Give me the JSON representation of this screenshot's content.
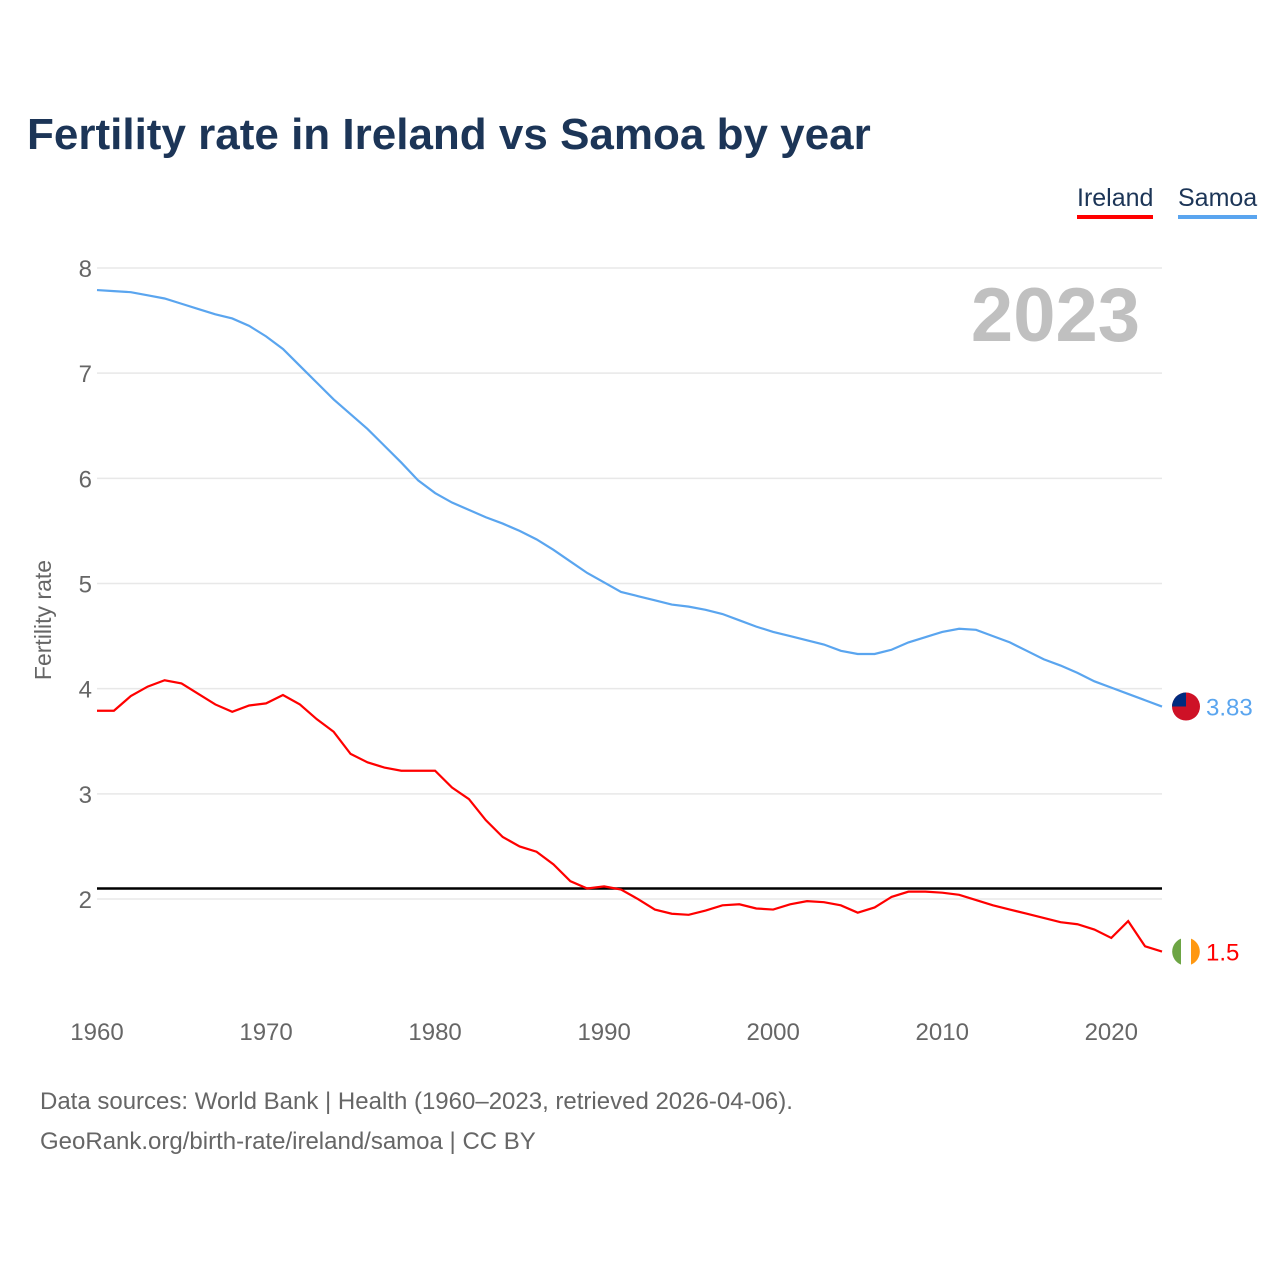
{
  "title": "Fertility rate in Ireland vs Samoa by year",
  "year_label": "2023",
  "footer": {
    "line1": "Data sources: World Bank | Health (1960–2023, retrieved 2026-04-06).",
    "line2": "GeoRank.org/birth-rate/ireland/samoa | CC BY"
  },
  "chart_data": {
    "type": "line",
    "title": "Fertility rate in Ireland vs Samoa by year",
    "xlabel": "",
    "ylabel": "Fertility rate",
    "xlim": [
      1960,
      2023
    ],
    "ylim": [
      1,
      8
    ],
    "xticks": [
      "1960",
      "1970",
      "1980",
      "1990",
      "2000",
      "2010",
      "2020"
    ],
    "yticks": [
      "2",
      "3",
      "4",
      "5",
      "6",
      "7",
      "8"
    ],
    "reference_line": 2.1,
    "legend": [
      "Ireland",
      "Samoa"
    ],
    "legend_position": "top-right",
    "x": [
      1960,
      1961,
      1962,
      1963,
      1964,
      1965,
      1966,
      1967,
      1968,
      1969,
      1970,
      1971,
      1972,
      1973,
      1974,
      1975,
      1976,
      1977,
      1978,
      1979,
      1980,
      1981,
      1982,
      1983,
      1984,
      1985,
      1986,
      1987,
      1988,
      1989,
      1990,
      1991,
      1992,
      1993,
      1994,
      1995,
      1996,
      1997,
      1998,
      1999,
      2000,
      2001,
      2002,
      2003,
      2004,
      2005,
      2006,
      2007,
      2008,
      2009,
      2010,
      2011,
      2012,
      2013,
      2014,
      2015,
      2016,
      2017,
      2018,
      2019,
      2020,
      2021,
      2022,
      2023
    ],
    "series": [
      {
        "name": "Ireland",
        "color": "#ff0000",
        "end_label": "1.5",
        "values": [
          3.79,
          3.79,
          3.93,
          4.02,
          4.08,
          4.05,
          3.95,
          3.85,
          3.78,
          3.84,
          3.86,
          3.94,
          3.85,
          3.71,
          3.59,
          3.38,
          3.3,
          3.25,
          3.22,
          3.22,
          3.22,
          3.06,
          2.95,
          2.75,
          2.59,
          2.5,
          2.45,
          2.33,
          2.17,
          2.1,
          2.12,
          2.09,
          2.0,
          1.9,
          1.86,
          1.85,
          1.89,
          1.94,
          1.95,
          1.91,
          1.9,
          1.95,
          1.98,
          1.97,
          1.94,
          1.87,
          1.92,
          2.02,
          2.07,
          2.07,
          2.06,
          2.04,
          1.99,
          1.94,
          1.9,
          1.86,
          1.82,
          1.78,
          1.76,
          1.71,
          1.63,
          1.79,
          1.55,
          1.5
        ]
      },
      {
        "name": "Samoa",
        "color": "#5aa5ef",
        "end_label": "3.83",
        "values": [
          7.79,
          7.78,
          7.77,
          7.74,
          7.71,
          7.66,
          7.61,
          7.56,
          7.52,
          7.45,
          7.35,
          7.23,
          7.07,
          6.91,
          6.75,
          6.61,
          6.47,
          6.31,
          6.15,
          5.98,
          5.86,
          5.77,
          5.7,
          5.63,
          5.57,
          5.5,
          5.42,
          5.32,
          5.21,
          5.1,
          5.01,
          4.92,
          4.88,
          4.84,
          4.8,
          4.78,
          4.75,
          4.71,
          4.65,
          4.59,
          4.54,
          4.5,
          4.46,
          4.42,
          4.36,
          4.33,
          4.33,
          4.37,
          4.44,
          4.49,
          4.54,
          4.57,
          4.56,
          4.5,
          4.44,
          4.36,
          4.28,
          4.22,
          4.15,
          4.07,
          4.01,
          3.95,
          3.89,
          3.83
        ]
      }
    ]
  }
}
